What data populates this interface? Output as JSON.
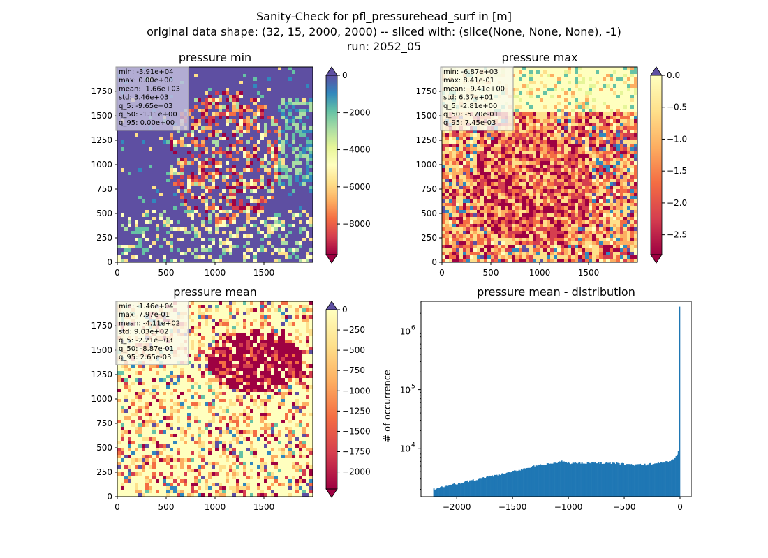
{
  "figure": {
    "title_lines": [
      "Sanity-Check for pfl_pressurehead_surf in [m]",
      "original data shape: (32, 15, 2000, 2000) -- sliced with: (slice(None, None, None), -1)",
      "run: 2052_05"
    ]
  },
  "chart_data": [
    {
      "type": "heatmap",
      "title": "pressure min",
      "xlim": [
        0,
        2000
      ],
      "ylim": [
        0,
        2000
      ],
      "xticks": [
        0,
        500,
        1000,
        1500
      ],
      "yticks": [
        0,
        250,
        500,
        750,
        1000,
        1250,
        1500,
        1750
      ],
      "colormap": "Spectral",
      "colorbar": {
        "vmin": -9650,
        "vmax": 0,
        "ticks": [
          0,
          -2000,
          -4000,
          -6000,
          -8000
        ],
        "tick_labels": [
          "0",
          "−2000",
          "−4000",
          "−6000",
          "−8000"
        ],
        "extend": "both"
      },
      "stats": [
        "min: -3.91e+04",
        "max: 0.00e+00",
        "mean: -1.66e+03",
        "std: 3.46e+03",
        "q_5: -9.65e+03",
        "q_50: -1.11e+00",
        "q_95: 0.00e+00"
      ]
    },
    {
      "type": "heatmap",
      "title": "pressure max",
      "xlim": [
        0,
        2000
      ],
      "ylim": [
        0,
        2000
      ],
      "xticks": [
        0,
        500,
        1000,
        1500
      ],
      "yticks": [
        0,
        250,
        500,
        750,
        1000,
        1250,
        1500,
        1750
      ],
      "colormap": "Spectral",
      "colorbar": {
        "vmin": -2.81,
        "vmax": 0.0,
        "ticks": [
          0.0,
          -0.5,
          -1.0,
          -1.5,
          -2.0,
          -2.5
        ],
        "tick_labels": [
          "0.0",
          "−0.5",
          "−1.0",
          "−1.5",
          "−2.0",
          "−2.5"
        ],
        "extend": "both"
      },
      "stats": [
        "min: -6.87e+03",
        "max: 8.41e-01",
        "mean: -9.41e+00",
        "std: 6.37e+01",
        "q_5: -2.81e+00",
        "q_50: -5.70e-01",
        "q_95: 7.45e-03"
      ]
    },
    {
      "type": "heatmap",
      "title": "pressure mean",
      "xlim": [
        0,
        2000
      ],
      "ylim": [
        0,
        2000
      ],
      "xticks": [
        0,
        500,
        1000,
        1500
      ],
      "yticks": [
        0,
        250,
        500,
        750,
        1000,
        1250,
        1500,
        1750
      ],
      "colormap": "Spectral",
      "colorbar": {
        "vmin": -2210,
        "vmax": 0,
        "ticks": [
          0,
          -250,
          -500,
          -750,
          -1000,
          -1250,
          -1500,
          -1750,
          -2000
        ],
        "tick_labels": [
          "0",
          "−250",
          "−500",
          "−750",
          "−1000",
          "−1250",
          "−1500",
          "−1750",
          "−2000"
        ],
        "extend": "both"
      },
      "stats": [
        "min: -1.46e+04",
        "max: 7.97e-01",
        "mean: -4.11e+02",
        "std: 9.03e+02",
        "q_5: -2.21e+03",
        "q_50: -8.87e-01",
        "q_95: 2.65e-03"
      ]
    },
    {
      "type": "bar",
      "title": "pressure mean - distribution",
      "ylabel": "# of occurrence",
      "xlim": [
        -2320,
        100
      ],
      "ylim": [
        1500,
        3200000
      ],
      "yscale": "log",
      "xticks": [
        -2000,
        -1500,
        -1000,
        -500,
        0
      ],
      "xtick_labels": [
        "−2000",
        "−1500",
        "−1000",
        "−500",
        "0"
      ],
      "yticks": [
        10000,
        100000,
        1000000
      ],
      "ytick_labels": [
        "10",
        "10",
        "10"
      ],
      "ytick_exponents": [
        "4",
        "5",
        "6"
      ],
      "bar_color": "#1f77b4",
      "histogram": {
        "range": [
          -2210,
          0
        ],
        "profile_x": [
          -2210,
          -2000,
          -1800,
          -1500,
          -1300,
          -1100,
          -1050,
          -1000,
          -800,
          -600,
          -500,
          -400,
          -300,
          -200,
          -100,
          -60,
          -30,
          -15,
          -10
        ],
        "profile_y": [
          2000,
          2500,
          3000,
          4000,
          5000,
          5700,
          6000,
          5600,
          5700,
          5600,
          5400,
          5200,
          5300,
          5600,
          6000,
          6400,
          7500,
          9000,
          12500
        ],
        "peak_x": -5,
        "peak_y": 2600000
      }
    }
  ]
}
